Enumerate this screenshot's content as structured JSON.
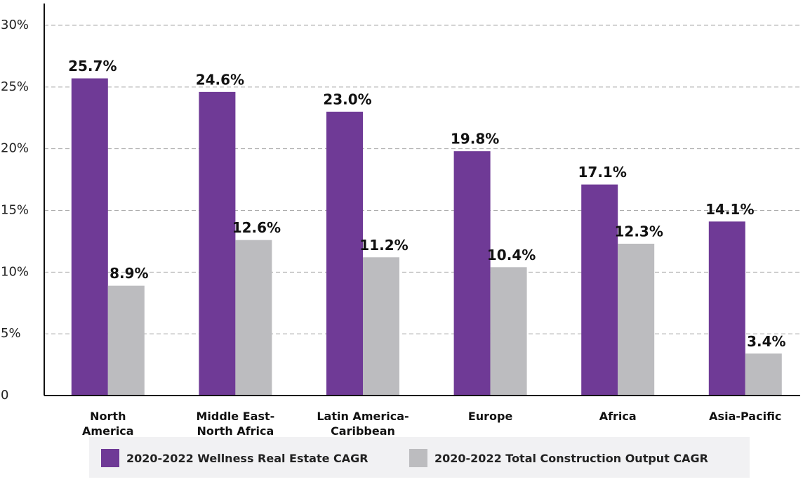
{
  "chart_data": {
    "type": "bar",
    "categories": [
      "North\nAmerica",
      "Middle East-\nNorth Africa",
      "Latin America-\nCaribbean",
      "Europe",
      "Africa",
      "Asia-Pacific"
    ],
    "series": [
      {
        "name": "2020-2022 Wellness Real Estate CAGR",
        "color": "#6f3a96",
        "values": [
          25.7,
          24.6,
          23.0,
          19.8,
          17.1,
          14.1
        ],
        "value_labels": [
          "25.7%",
          "24.6%",
          "23.0%",
          "19.8%",
          "17.1%",
          "14.1%"
        ]
      },
      {
        "name": "2020-2022 Total Construction Output CAGR",
        "color": "#bcbcbf",
        "values": [
          8.9,
          12.6,
          11.2,
          10.4,
          12.3,
          3.4
        ],
        "value_labels": [
          "8.9%",
          "12.6%",
          "11.2%",
          "10.4%",
          "12.3%",
          "3.4%"
        ]
      }
    ],
    "ylim": [
      0,
      30
    ],
    "yticks": [
      0,
      {
        "value": 5,
        "label": "5%"
      },
      {
        "value": 10,
        "label": "10%"
      },
      {
        "value": 15,
        "label": "15%"
      },
      {
        "value": 20,
        "label": "20%"
      },
      {
        "value": 25,
        "label": "25%"
      },
      {
        "value": 30,
        "label": "30%"
      }
    ],
    "grid": true
  }
}
